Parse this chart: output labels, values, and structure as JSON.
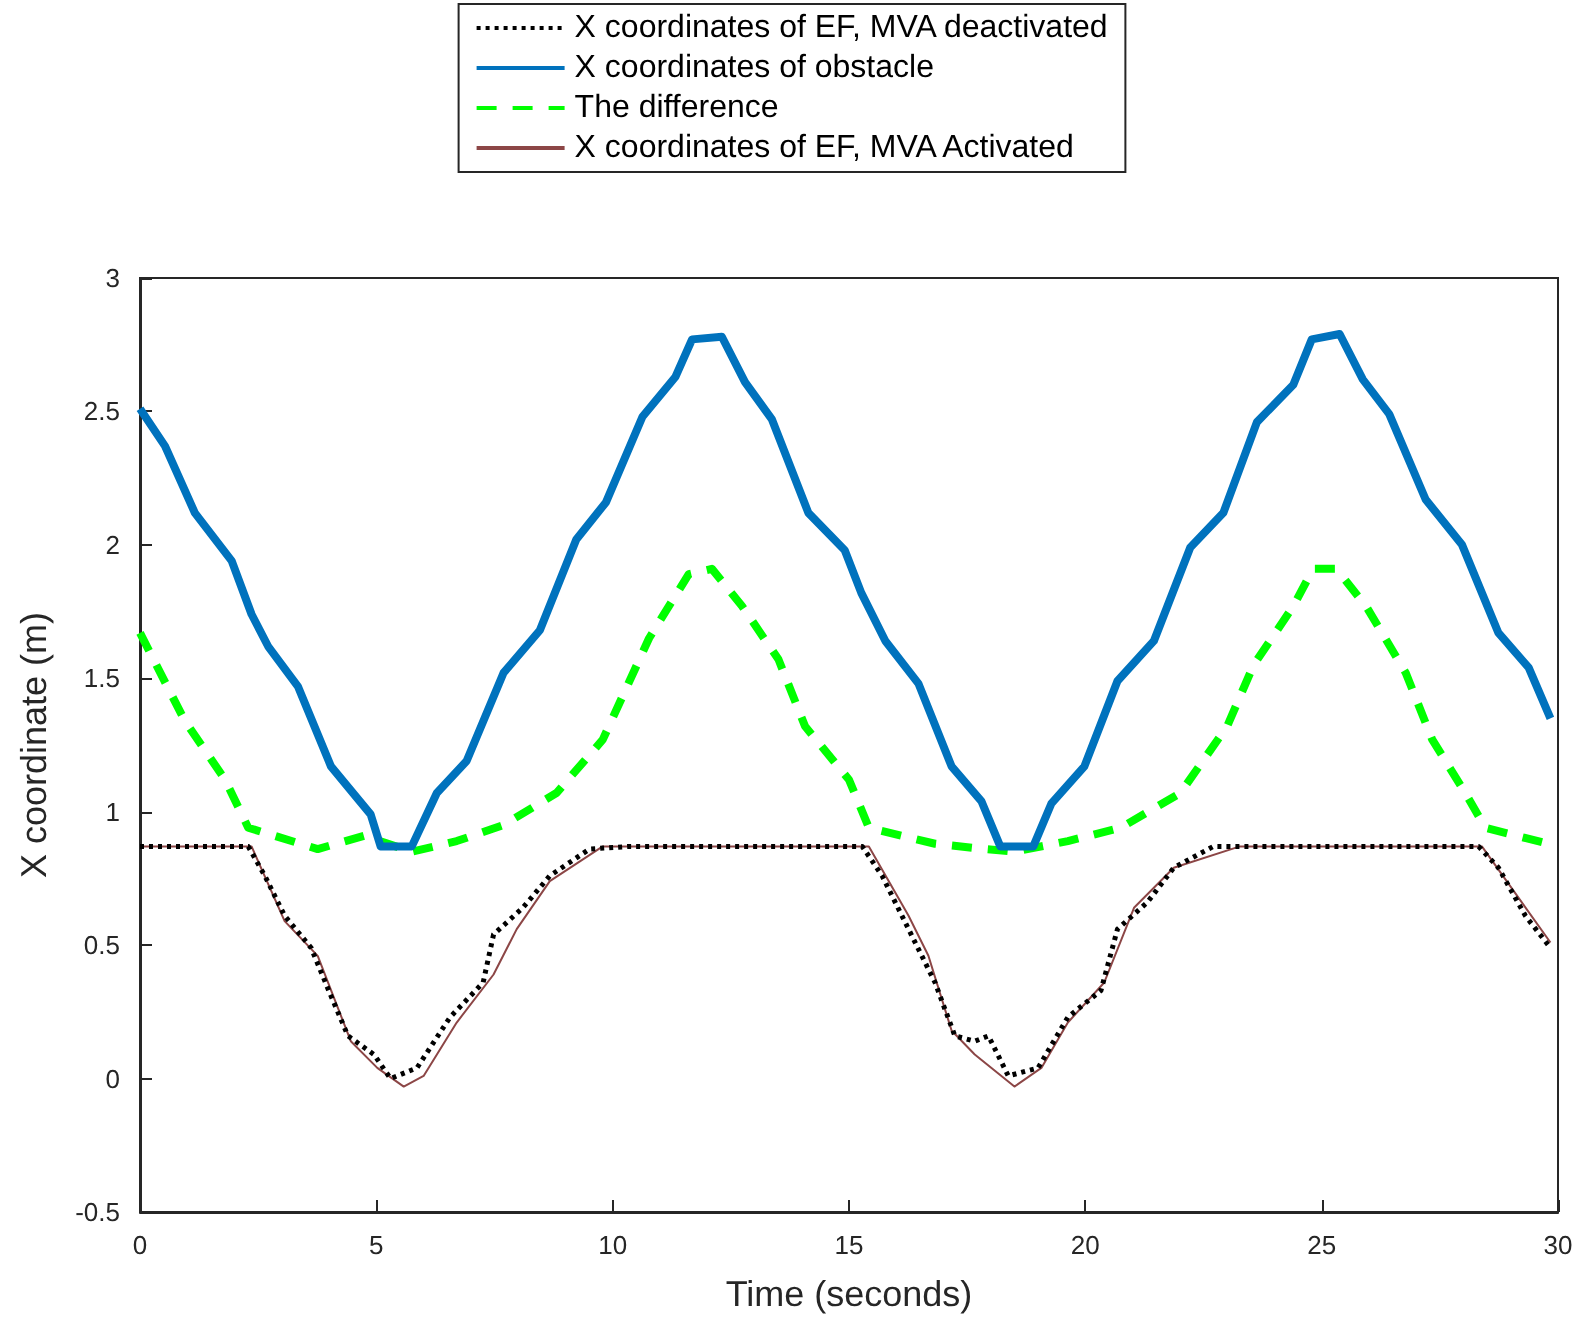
{
  "chart_data": {
    "type": "line",
    "xlabel": "Time (seconds)",
    "ylabel": "X coordinate (m)",
    "xlim": [
      0,
      30
    ],
    "xticks": [
      0,
      5,
      10,
      15,
      20,
      25,
      30
    ],
    "ylim": [
      -0.5,
      3
    ],
    "yticks": [
      -0.5,
      0,
      0.5,
      1,
      1.5,
      2,
      2.5,
      3
    ],
    "grid": false,
    "legend": "top",
    "marker": "none",
    "series": [
      {
        "name": "X coordinates of EF, MVA deactivated",
        "color": "#000000",
        "line_style": "dotted",
        "x": [
          0,
          2.29,
          2.64,
          3.06,
          3.62,
          4.04,
          4.4,
          4.95,
          5.3,
          5.86,
          6.56,
          7.26,
          7.48,
          8.1,
          8.67,
          9.51,
          10.35,
          15.28,
          15.7,
          16.26,
          16.82,
          17.24,
          17.66,
          17.95,
          18.37,
          19.0,
          19.63,
          20.33,
          20.68,
          21.31,
          21.87,
          22.71,
          28.32,
          28.74,
          29.31,
          29.84
        ],
        "values": [
          0.87,
          0.87,
          0.76,
          0.61,
          0.49,
          0.31,
          0.16,
          0.09,
          0.0,
          0.04,
          0.23,
          0.36,
          0.54,
          0.64,
          0.76,
          0.86,
          0.87,
          0.87,
          0.76,
          0.56,
          0.36,
          0.16,
          0.14,
          0.16,
          0.01,
          0.04,
          0.23,
          0.33,
          0.56,
          0.66,
          0.79,
          0.87,
          0.87,
          0.79,
          0.61,
          0.49
        ]
      },
      {
        "name": "X coordinates of obstacle",
        "color": "#0072bd",
        "line_style": "solid",
        "x": [
          0,
          0.53,
          1.16,
          1.94,
          2.36,
          2.71,
          3.34,
          4.04,
          4.88,
          5.09,
          5.75,
          6.28,
          6.91,
          7.69,
          8.46,
          9.23,
          9.86,
          10.63,
          11.33,
          11.68,
          12.31,
          12.8,
          13.37,
          14.14,
          14.91,
          15.26,
          15.77,
          16.47,
          17.17,
          17.8,
          18.2,
          18.9,
          19.28,
          19.98,
          20.68,
          21.45,
          22.22,
          22.92,
          23.63,
          24.4,
          24.79,
          25.38,
          25.87,
          26.43,
          27.2,
          27.97,
          28.74,
          29.38,
          29.84
        ],
        "values": [
          2.51,
          2.37,
          2.12,
          1.94,
          1.74,
          1.62,
          1.47,
          1.17,
          0.99,
          0.87,
          0.87,
          1.07,
          1.19,
          1.52,
          1.68,
          2.02,
          2.16,
          2.48,
          2.63,
          2.77,
          2.78,
          2.61,
          2.47,
          2.12,
          1.98,
          1.82,
          1.64,
          1.48,
          1.17,
          1.04,
          0.87,
          0.87,
          1.03,
          1.17,
          1.49,
          1.64,
          1.99,
          2.12,
          2.46,
          2.6,
          2.77,
          2.79,
          2.62,
          2.49,
          2.17,
          2.0,
          1.67,
          1.54,
          1.35
        ]
      },
      {
        "name": "The difference",
        "color": "#00ff00",
        "line_style": "dashed",
        "x": [
          0,
          0.95,
          1.8,
          2.29,
          3.76,
          4.74,
          5.75,
          6.7,
          7.69,
          8.81,
          9.79,
          10.77,
          11.61,
          12.1,
          12.74,
          13.51,
          14.07,
          15.0,
          15.42,
          16.82,
          17.88,
          18.5,
          19.63,
          20.75,
          22.01,
          23.0,
          23.56,
          24.4,
          24.82,
          25.31,
          25.94,
          26.78,
          27.34,
          28.04,
          28.46,
          29.79
        ],
        "values": [
          1.67,
          1.34,
          1.12,
          0.94,
          0.86,
          0.91,
          0.85,
          0.89,
          0.95,
          1.07,
          1.27,
          1.65,
          1.89,
          1.91,
          1.77,
          1.57,
          1.32,
          1.12,
          0.94,
          0.88,
          0.86,
          0.85,
          0.89,
          0.94,
          1.07,
          1.32,
          1.55,
          1.77,
          1.91,
          1.91,
          1.77,
          1.52,
          1.27,
          1.07,
          0.94,
          0.88
        ]
      },
      {
        "name": "X coordinates of EF, MVA Activated",
        "color": "#8c4646",
        "line_style": "solid",
        "x": [
          0,
          2.36,
          3.06,
          3.76,
          4.46,
          5.02,
          5.58,
          6.0,
          6.7,
          7.48,
          7.97,
          8.67,
          9.79,
          15.42,
          16.26,
          16.68,
          17.17,
          17.66,
          18.5,
          19.07,
          19.63,
          20.4,
          21.03,
          21.87,
          23.27,
          28.39,
          29.84
        ],
        "values": [
          0.87,
          0.87,
          0.59,
          0.46,
          0.14,
          0.04,
          -0.03,
          0.01,
          0.21,
          0.39,
          0.56,
          0.74,
          0.87,
          0.87,
          0.61,
          0.46,
          0.18,
          0.09,
          -0.03,
          0.04,
          0.21,
          0.36,
          0.64,
          0.79,
          0.87,
          0.87,
          0.51
        ]
      }
    ]
  }
}
